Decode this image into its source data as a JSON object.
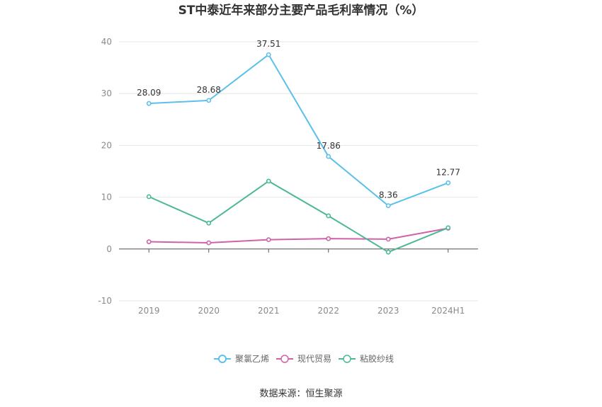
{
  "chart_data": {
    "type": "line",
    "title": "ST中泰近年来部分主要产品毛利率情况（%）",
    "categories": [
      "2019",
      "2020",
      "2021",
      "2022",
      "2023",
      "2024H1"
    ],
    "ylim": [
      -10,
      40
    ],
    "yticks": [
      -10,
      0,
      10,
      20,
      30,
      40
    ],
    "grid": true,
    "legend_position": "bottom",
    "series": [
      {
        "name": "聚氯乙烯",
        "color": "#5bc0eb",
        "values": [
          28.09,
          28.68,
          37.51,
          17.86,
          8.36,
          12.77
        ],
        "labels": [
          "28.09",
          "28.68",
          "37.51",
          "17.86",
          "8.36",
          "12.77"
        ]
      },
      {
        "name": "现代贸易",
        "color": "#d062a8",
        "values": [
          1.4,
          1.2,
          1.8,
          2.0,
          1.9,
          4.0
        ],
        "labels": []
      },
      {
        "name": "粘胶纱线",
        "color": "#4cb897",
        "values": [
          10.1,
          5.0,
          13.1,
          6.4,
          -0.6,
          4.1
        ],
        "labels": []
      }
    ]
  },
  "source": "数据来源：恒生聚源"
}
